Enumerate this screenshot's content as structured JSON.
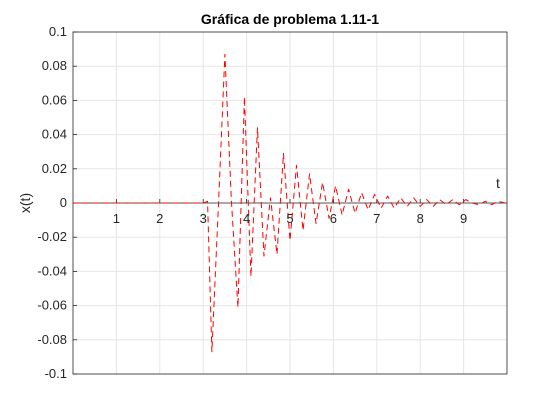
{
  "chart_data": {
    "type": "line",
    "title": "Gráfica de problema 1.11-1",
    "xlabel": "t",
    "ylabel": "x(t)",
    "xlim": [
      0,
      10
    ],
    "ylim": [
      -0.1,
      0.1
    ],
    "x_ticks": [
      1,
      2,
      3,
      4,
      5,
      6,
      7,
      8,
      9
    ],
    "x_tick_labels": [
      "1",
      "2",
      "3",
      "4",
      "5",
      "6",
      "7",
      "8",
      "9"
    ],
    "y_ticks": [
      -0.1,
      -0.08,
      -0.06,
      -0.04,
      -0.02,
      0,
      0.02,
      0.04,
      0.06,
      0.08,
      0.1
    ],
    "y_tick_labels": [
      "-0.1",
      "-0.08",
      "-0.06",
      "-0.04",
      "-0.02",
      "0",
      "0.02",
      "0.04",
      "0.06",
      "0.08",
      "0.1"
    ],
    "grid": true,
    "series": [
      {
        "style": "dashed",
        "color": "#ff0000",
        "x": [
          0,
          1,
          2,
          3,
          3.1,
          3.2,
          3.35,
          3.5,
          3.65,
          3.8,
          3.95,
          4.1,
          4.25,
          4.4,
          4.55,
          4.7,
          4.85,
          5.0,
          5.15,
          5.3,
          5.45,
          5.6,
          5.75,
          5.9,
          6.05,
          6.2,
          6.35,
          6.5,
          6.65,
          6.8,
          6.95,
          7.1,
          7.25,
          7.4,
          7.55,
          7.7,
          7.85,
          8.0,
          8.15,
          8.3,
          8.45,
          8.6,
          8.75,
          8.9,
          9.05,
          9.2,
          9.35,
          9.5,
          9.65,
          9.8,
          9.95,
          10
        ],
        "y": [
          0,
          0,
          0,
          0,
          0.001,
          -0.087,
          -0.002,
          0.087,
          0.001,
          -0.061,
          0.062,
          -0.043,
          0.044,
          -0.031,
          0.003,
          -0.03,
          0.029,
          -0.022,
          0.022,
          -0.016,
          0.017,
          -0.012,
          0.012,
          -0.009,
          0.01,
          -0.007,
          0.008,
          -0.006,
          0.006,
          -0.004,
          0.005,
          -0.003,
          0.004,
          -0.003,
          0.003,
          -0.002,
          0.003,
          -0.002,
          0.002,
          -0.002,
          0.002,
          -0.001,
          0.002,
          -0.001,
          0.002,
          0.0,
          -0.001,
          0.001,
          -0.001,
          0.001,
          0.0,
          0.002
        ]
      }
    ]
  }
}
